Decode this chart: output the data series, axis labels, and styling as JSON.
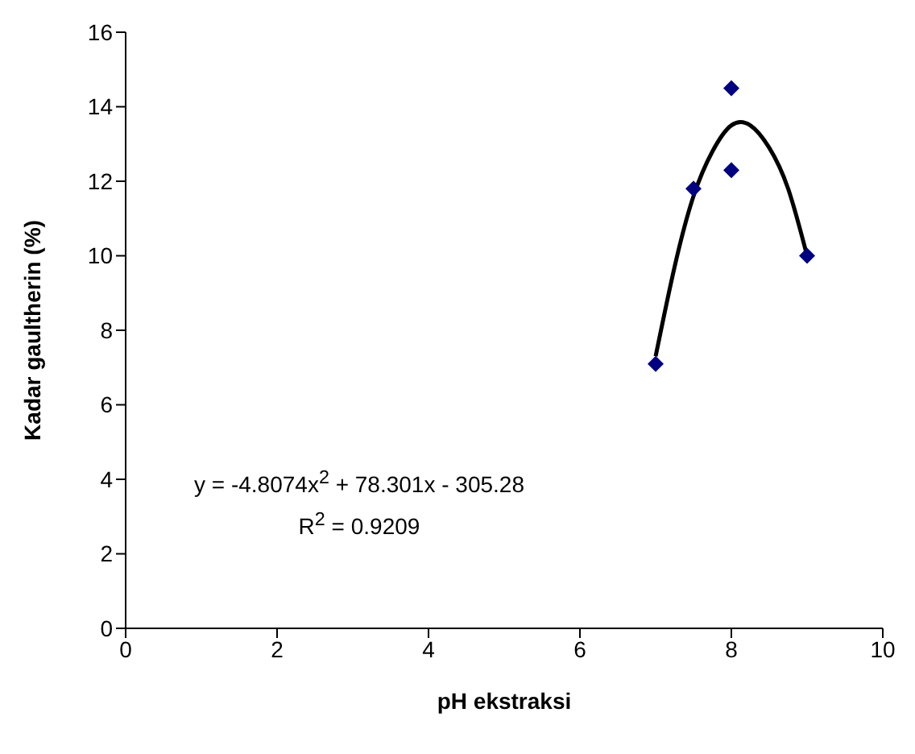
{
  "chart_data": {
    "type": "scatter",
    "xlabel": "pH ekstraksi",
    "ylabel": "Kadar gaultherin (%)",
    "xlim": [
      0,
      10
    ],
    "xticks": [
      0,
      2,
      4,
      6,
      8,
      10
    ],
    "ylim": [
      0,
      16
    ],
    "yticks": [
      0,
      2,
      4,
      6,
      8,
      10,
      12,
      14,
      16
    ],
    "grid": false,
    "legend": false,
    "marker": "diamond",
    "series": [
      {
        "color": "#000080",
        "x": [
          7,
          7.5,
          8,
          8,
          9
        ],
        "values": [
          7.1,
          11.8,
          14.5,
          12.3,
          10.0
        ]
      },
      {
        "type": "line",
        "color": "#000000",
        "marker": "none",
        "x": [
          7,
          7.25,
          7.5,
          7.75,
          8,
          8.25,
          8.5,
          8.75,
          9
        ],
        "values": [
          7.3,
          9.7,
          11.6,
          12.8,
          13.5,
          13.5,
          12.9,
          11.8,
          10.0
        ]
      }
    ],
    "annotations": [
      "y = -4.8074x$^{2}$ + 78.301x - 305.28",
      "R$^{2}$ = 0.9209"
    ]
  }
}
